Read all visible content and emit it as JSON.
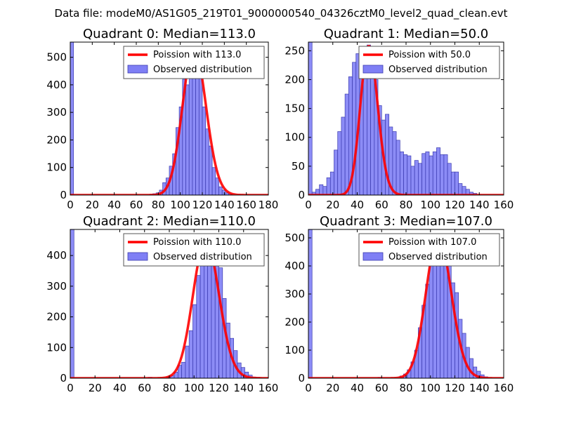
{
  "chart_data": {
    "suptitle": "Data file: modeM0/AS1G05_219T01_9000000540_04326cztM0_level2_quad_clean.evt",
    "panels": [
      {
        "type": "bar",
        "title": "Quadrant 0: Median=113.0",
        "median": 113.0,
        "xlim": [
          0,
          180
        ],
        "ylim": [
          0,
          555
        ],
        "xticks": [
          "0",
          "20",
          "40",
          "60",
          "80",
          "100",
          "120",
          "140",
          "160",
          "180"
        ],
        "yticks": [
          "0",
          "100",
          "200",
          "300",
          "400",
          "500"
        ],
        "bin_width": 3,
        "bins": [
          {
            "x": 0,
            "y": 555
          },
          {
            "x": 72,
            "y": 3
          },
          {
            "x": 75,
            "y": 5
          },
          {
            "x": 78,
            "y": 8
          },
          {
            "x": 81,
            "y": 18
          },
          {
            "x": 84,
            "y": 45
          },
          {
            "x": 87,
            "y": 62
          },
          {
            "x": 90,
            "y": 105
          },
          {
            "x": 93,
            "y": 150
          },
          {
            "x": 96,
            "y": 245
          },
          {
            "x": 99,
            "y": 320
          },
          {
            "x": 102,
            "y": 420
          },
          {
            "x": 105,
            "y": 400
          },
          {
            "x": 108,
            "y": 438
          },
          {
            "x": 111,
            "y": 535
          },
          {
            "x": 114,
            "y": 500
          },
          {
            "x": 117,
            "y": 430
          },
          {
            "x": 120,
            "y": 320
          },
          {
            "x": 123,
            "y": 240
          },
          {
            "x": 126,
            "y": 178
          },
          {
            "x": 129,
            "y": 100
          },
          {
            "x": 132,
            "y": 62
          },
          {
            "x": 135,
            "y": 30
          },
          {
            "x": 138,
            "y": 18
          },
          {
            "x": 141,
            "y": 8
          },
          {
            "x": 144,
            "y": 4
          }
        ],
        "poisson_mean": 113.0,
        "poisson_peak": 535,
        "legend": [
          "Poission with 113.0",
          "Observed distribution"
        ]
      },
      {
        "type": "bar",
        "title": "Quadrant 1: Median=50.0",
        "median": 50.0,
        "xlim": [
          0,
          160
        ],
        "ylim": [
          0,
          265
        ],
        "xticks": [
          "0",
          "20",
          "40",
          "60",
          "80",
          "100",
          "120",
          "140",
          "160"
        ],
        "yticks": [
          "0",
          "50",
          "100",
          "150",
          "200",
          "250"
        ],
        "bin_width": 3,
        "bins": [
          {
            "x": 0,
            "y": 265
          },
          {
            "x": 3,
            "y": 5
          },
          {
            "x": 6,
            "y": 10
          },
          {
            "x": 9,
            "y": 18
          },
          {
            "x": 12,
            "y": 15
          },
          {
            "x": 15,
            "y": 30
          },
          {
            "x": 18,
            "y": 40
          },
          {
            "x": 21,
            "y": 78
          },
          {
            "x": 24,
            "y": 110
          },
          {
            "x": 27,
            "y": 135
          },
          {
            "x": 30,
            "y": 175
          },
          {
            "x": 33,
            "y": 205
          },
          {
            "x": 36,
            "y": 230
          },
          {
            "x": 39,
            "y": 245
          },
          {
            "x": 42,
            "y": 225
          },
          {
            "x": 45,
            "y": 255
          },
          {
            "x": 48,
            "y": 260
          },
          {
            "x": 51,
            "y": 250
          },
          {
            "x": 54,
            "y": 200
          },
          {
            "x": 57,
            "y": 155
          },
          {
            "x": 60,
            "y": 130
          },
          {
            "x": 63,
            "y": 140
          },
          {
            "x": 66,
            "y": 118
          },
          {
            "x": 69,
            "y": 110
          },
          {
            "x": 72,
            "y": 95
          },
          {
            "x": 75,
            "y": 75
          },
          {
            "x": 78,
            "y": 70
          },
          {
            "x": 81,
            "y": 68
          },
          {
            "x": 84,
            "y": 50
          },
          {
            "x": 87,
            "y": 60
          },
          {
            "x": 90,
            "y": 55
          },
          {
            "x": 93,
            "y": 72
          },
          {
            "x": 96,
            "y": 75
          },
          {
            "x": 99,
            "y": 68
          },
          {
            "x": 102,
            "y": 75
          },
          {
            "x": 105,
            "y": 82
          },
          {
            "x": 108,
            "y": 70
          },
          {
            "x": 111,
            "y": 70
          },
          {
            "x": 114,
            "y": 55
          },
          {
            "x": 117,
            "y": 40
          },
          {
            "x": 120,
            "y": 40
          },
          {
            "x": 123,
            "y": 20
          },
          {
            "x": 126,
            "y": 15
          },
          {
            "x": 129,
            "y": 10
          },
          {
            "x": 132,
            "y": 5
          },
          {
            "x": 135,
            "y": 3
          }
        ],
        "poisson_mean": 50.0,
        "poisson_peak": 258,
        "legend": [
          "Poission with 50.0",
          "Observed distribution"
        ]
      },
      {
        "type": "bar",
        "title": "Quadrant 2: Median=110.0",
        "median": 110.0,
        "xlim": [
          0,
          160
        ],
        "ylim": [
          0,
          485
        ],
        "xticks": [
          "0",
          "20",
          "40",
          "60",
          "80",
          "100",
          "120",
          "140",
          "160"
        ],
        "yticks": [
          "0",
          "100",
          "200",
          "300",
          "400"
        ],
        "bin_width": 3,
        "bins": [
          {
            "x": 0,
            "y": 485
          },
          {
            "x": 63,
            "y": 3
          },
          {
            "x": 78,
            "y": 5
          },
          {
            "x": 81,
            "y": 8
          },
          {
            "x": 84,
            "y": 20
          },
          {
            "x": 87,
            "y": 42
          },
          {
            "x": 90,
            "y": 52
          },
          {
            "x": 93,
            "y": 105
          },
          {
            "x": 96,
            "y": 155
          },
          {
            "x": 99,
            "y": 240
          },
          {
            "x": 102,
            "y": 335
          },
          {
            "x": 105,
            "y": 410
          },
          {
            "x": 108,
            "y": 420
          },
          {
            "x": 111,
            "y": 435
          },
          {
            "x": 114,
            "y": 455
          },
          {
            "x": 117,
            "y": 395
          },
          {
            "x": 120,
            "y": 360
          },
          {
            "x": 123,
            "y": 260
          },
          {
            "x": 126,
            "y": 180
          },
          {
            "x": 129,
            "y": 130
          },
          {
            "x": 132,
            "y": 90
          },
          {
            "x": 135,
            "y": 50
          },
          {
            "x": 138,
            "y": 35
          },
          {
            "x": 141,
            "y": 20
          },
          {
            "x": 144,
            "y": 10
          },
          {
            "x": 147,
            "y": 4
          },
          {
            "x": 150,
            "y": 3
          }
        ],
        "poisson_mean": 110.0,
        "poisson_peak": 450,
        "legend": [
          "Poission with 110.0",
          "Observed distribution"
        ]
      },
      {
        "type": "bar",
        "title": "Quadrant 3: Median=107.0",
        "median": 107.0,
        "xlim": [
          0,
          160
        ],
        "ylim": [
          0,
          530
        ],
        "xticks": [
          "0",
          "20",
          "40",
          "60",
          "80",
          "100",
          "120",
          "140",
          "160"
        ],
        "yticks": [
          "0",
          "100",
          "200",
          "300",
          "400",
          "500"
        ],
        "bin_width": 3,
        "bins": [
          {
            "x": 0,
            "y": 530
          },
          {
            "x": 57,
            "y": 3
          },
          {
            "x": 75,
            "y": 8
          },
          {
            "x": 78,
            "y": 15
          },
          {
            "x": 81,
            "y": 30
          },
          {
            "x": 84,
            "y": 58
          },
          {
            "x": 87,
            "y": 100
          },
          {
            "x": 90,
            "y": 180
          },
          {
            "x": 93,
            "y": 260
          },
          {
            "x": 96,
            "y": 335
          },
          {
            "x": 99,
            "y": 408
          },
          {
            "x": 102,
            "y": 440
          },
          {
            "x": 105,
            "y": 480
          },
          {
            "x": 108,
            "y": 495
          },
          {
            "x": 111,
            "y": 470
          },
          {
            "x": 114,
            "y": 420
          },
          {
            "x": 117,
            "y": 340
          },
          {
            "x": 120,
            "y": 305
          },
          {
            "x": 123,
            "y": 210
          },
          {
            "x": 126,
            "y": 160
          },
          {
            "x": 129,
            "y": 110
          },
          {
            "x": 132,
            "y": 70
          },
          {
            "x": 135,
            "y": 40
          },
          {
            "x": 138,
            "y": 25
          },
          {
            "x": 141,
            "y": 12
          },
          {
            "x": 144,
            "y": 5
          }
        ],
        "poisson_mean": 107.0,
        "poisson_peak": 505,
        "legend": [
          "Poission with 107.0",
          "Observed distribution"
        ]
      }
    ]
  },
  "colors": {
    "bar_fill": "#7f7ff5",
    "bar_edge": "#3b3bb0",
    "poisson_line": "#ff0000",
    "axes": "#000000",
    "legend_edge": "#555555"
  }
}
